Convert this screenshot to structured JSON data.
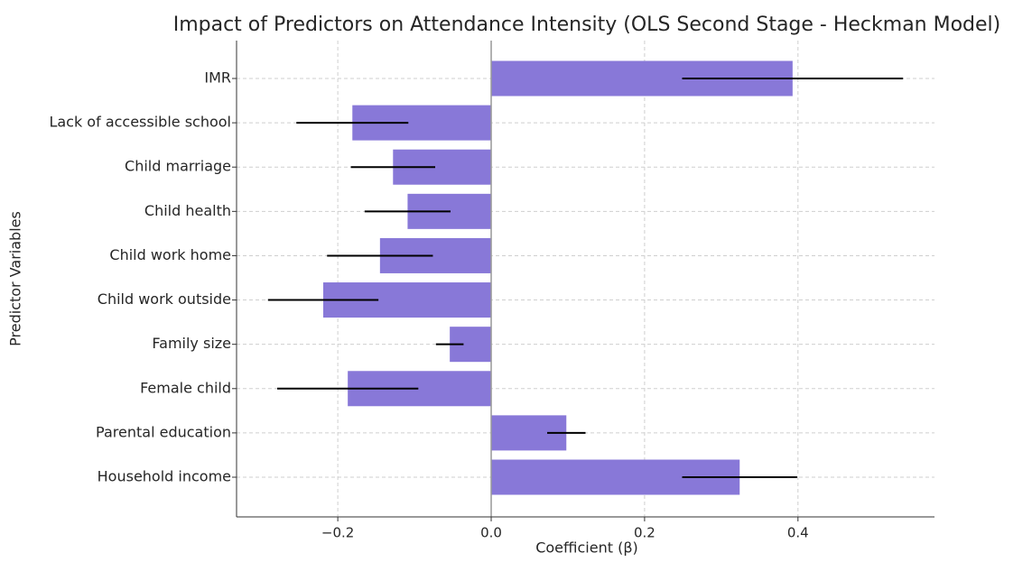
{
  "chart_data": {
    "type": "bar",
    "orientation": "horizontal",
    "title": "Impact of Predictors on Attendance Intensity (OLS Second Stage - Heckman Model)",
    "x_label": "Coefficient (β)",
    "y_label": "Predictor Variables",
    "categories": [
      "IMR",
      "Lack of accessible school",
      "Child marriage",
      "Child health",
      "Child work home",
      "Child work outside",
      "Family size",
      "Female child",
      "Parental education",
      "Household income"
    ],
    "values": [
      0.393,
      -0.181,
      -0.128,
      -0.109,
      -0.145,
      -0.219,
      -0.054,
      -0.187,
      0.098,
      0.324
    ],
    "errors": [
      0.144,
      0.073,
      0.055,
      0.056,
      0.069,
      0.072,
      0.018,
      0.092,
      0.025,
      0.075
    ],
    "color": "#8878d8",
    "error_color": "#000000",
    "xlim": [
      -0.332,
      0.578
    ],
    "xticks": [
      {
        "value": -0.2,
        "label": "−0.2"
      },
      {
        "value": 0,
        "label": "0.0"
      },
      0.2,
      0.4
    ],
    "grid": true
  }
}
